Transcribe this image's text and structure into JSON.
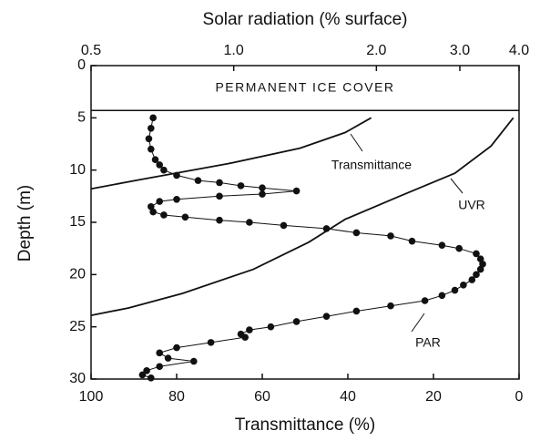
{
  "chart_data": {
    "type": "line",
    "x2label": "Solar radiation (% surface)",
    "xlabel": "Transmittance (%)",
    "ylabel": "Depth (m)",
    "xlim": [
      100,
      0
    ],
    "xticks": [
      100,
      80,
      60,
      40,
      20,
      0
    ],
    "x2lim": [
      0.5,
      4.0
    ],
    "x2scale": "log",
    "x2ticks": [
      0.5,
      {
        "value": 1,
        "label": "1.0"
      },
      {
        "value": 2,
        "label": "2.0"
      },
      {
        "value": 3,
        "label": "3.0"
      },
      {
        "value": 4,
        "label": "4.0"
      }
    ],
    "ylim": [
      0,
      30
    ],
    "yinverted": true,
    "yticks": [
      0,
      5,
      10,
      15,
      20,
      25,
      30
    ],
    "annotation": {
      "text": "PERMANENT ICE COVER",
      "depth": 4.3
    },
    "series": [
      {
        "name": "Transmittance",
        "color": "#111",
        "marker": true,
        "x": [
          85.5,
          86,
          86.5,
          86,
          85,
          84,
          83,
          80,
          75,
          70,
          65,
          60,
          52,
          60,
          70,
          80,
          84,
          86,
          85.5,
          83,
          78,
          70,
          63,
          55,
          45,
          38,
          30,
          25,
          18,
          14,
          10,
          9,
          8.5,
          9,
          10,
          11,
          13,
          15,
          18,
          22,
          30,
          38,
          45,
          52,
          58,
          63,
          65,
          64,
          72,
          80,
          84,
          82,
          76,
          84,
          87,
          88,
          86
        ],
        "y": [
          5,
          6,
          7,
          8,
          9,
          9.5,
          10,
          10.5,
          11,
          11.2,
          11.5,
          11.7,
          12,
          12.3,
          12.5,
          12.8,
          13,
          13.5,
          14,
          14.3,
          14.5,
          14.8,
          15,
          15.3,
          15.6,
          16,
          16.3,
          16.8,
          17.2,
          17.5,
          18,
          18.5,
          19,
          19.5,
          20,
          20.5,
          21,
          21.5,
          22,
          22.5,
          23,
          23.5,
          24,
          24.5,
          25,
          25.3,
          25.7,
          26,
          26.5,
          27,
          27.5,
          28,
          28.3,
          28.8,
          29.2,
          29.6,
          29.9
        ]
      },
      {
        "name": "UVR",
        "color": "#111",
        "axis": "x2",
        "x": [
          1.95,
          1.72,
          1.38,
          0.97,
          0.62,
          0.5
        ],
        "y": [
          5,
          6.4,
          7.9,
          9.4,
          11.0,
          11.8
        ]
      },
      {
        "name": "PAR",
        "color": "#111",
        "axis": "x2",
        "x": [
          3.89,
          3.49,
          2.93,
          2.24,
          1.72,
          1.44,
          1.1,
          0.78,
          0.6,
          0.5
        ],
        "y": [
          5,
          7.7,
          10.3,
          12.5,
          14.7,
          16.9,
          19.5,
          21.8,
          23.2,
          23.9
        ]
      }
    ]
  }
}
